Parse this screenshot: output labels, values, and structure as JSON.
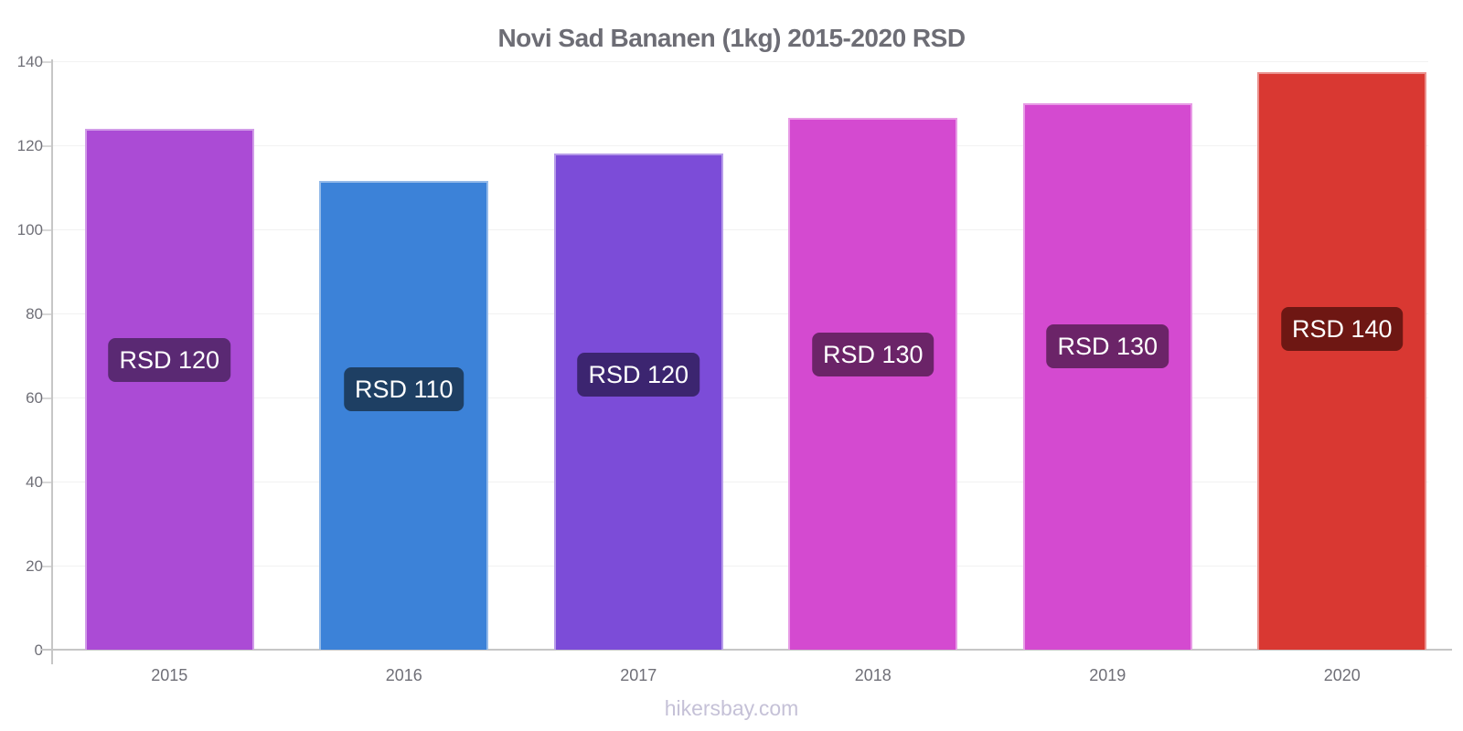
{
  "title": "Novi Sad Bananen (1kg) 2015-2020 RSD",
  "footer": {
    "text": "hikersbay.com"
  },
  "chart_data": {
    "type": "bar",
    "title": "Novi Sad Bananen (1kg) 2015-2020 RSD",
    "categories": [
      "2015",
      "2016",
      "2017",
      "2018",
      "2019",
      "2020"
    ],
    "values": [
      124,
      111.5,
      118,
      126.5,
      130,
      137.5
    ],
    "bar_labels": [
      "RSD 120",
      "RSD 110",
      "RSD 120",
      "RSD 130",
      "RSD 130",
      "RSD 140"
    ],
    "bar_colors": [
      "#ab4bd5",
      "#3c82d8",
      "#7c4cd8",
      "#d44ad0",
      "#d44ad0",
      "#d93832"
    ],
    "label_bg_colors": [
      "#5a2973",
      "#1e3f63",
      "#3c2570",
      "#6b2468",
      "#6b2468",
      "#6e1713"
    ],
    "xlabel": "",
    "ylabel": "",
    "ylim": [
      0,
      140
    ],
    "yticks": [
      0,
      20,
      40,
      60,
      80,
      100,
      120,
      140
    ],
    "grid": "horizontal",
    "legend": "none",
    "colors": {
      "title": "#6d6d75",
      "tick_label": "#6f6f77",
      "axis": "#c6c6c6",
      "grid": "#f2f2f2",
      "pill_text": "#ffffff",
      "footer": "#c5c1d7",
      "background": "#ffffff"
    }
  }
}
